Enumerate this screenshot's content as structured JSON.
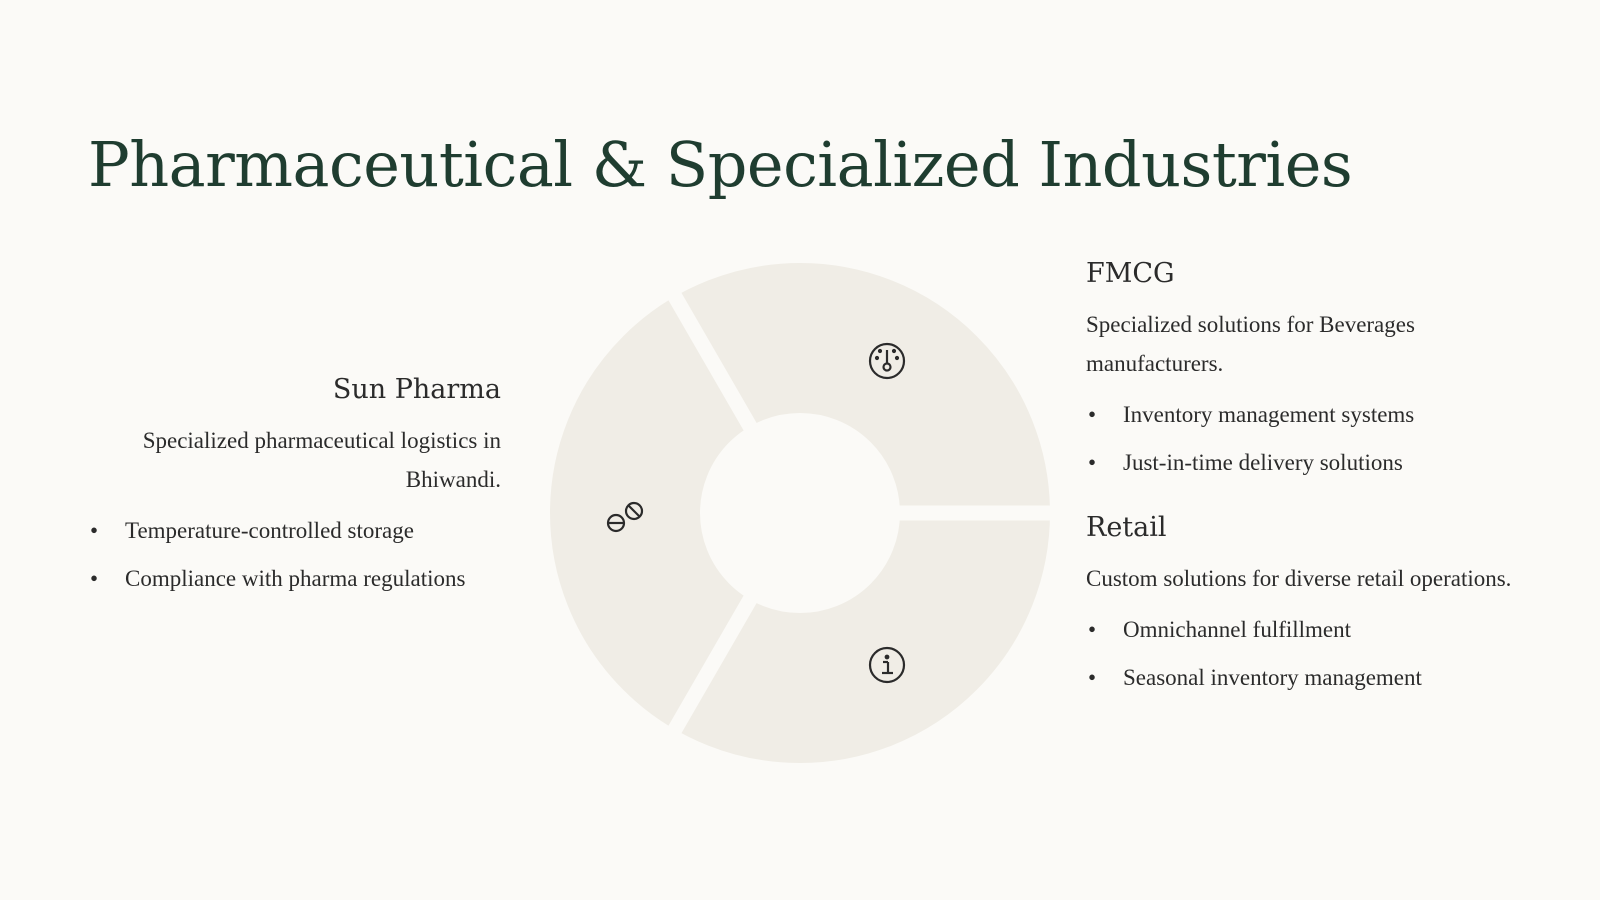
{
  "title": "Pharmaceutical & Specialized Industries",
  "colors": {
    "title": "#1f3d30",
    "segment": "#f0ede6",
    "background": "#fbfaf7",
    "icon": "#2b2b2b"
  },
  "left": {
    "heading": "Sun Pharma",
    "description": "Specialized pharmaceutical logistics in Bhiwandi.",
    "bullets": [
      "Temperature-controlled storage",
      "Compliance with pharma regulations"
    ]
  },
  "right": [
    {
      "heading": "FMCG",
      "description": "Specialized solutions for Beverages manufacturers.",
      "bullets": [
        "Inventory management systems",
        "Just-in-time delivery solutions"
      ]
    },
    {
      "heading": "Retail",
      "description": "Custom solutions for diverse retail operations.",
      "bullets": [
        "Omnichannel fulfillment",
        "Seasonal inventory management"
      ]
    }
  ],
  "donut_icons": [
    "gauge-icon",
    "pills-icon",
    "info-icon"
  ]
}
